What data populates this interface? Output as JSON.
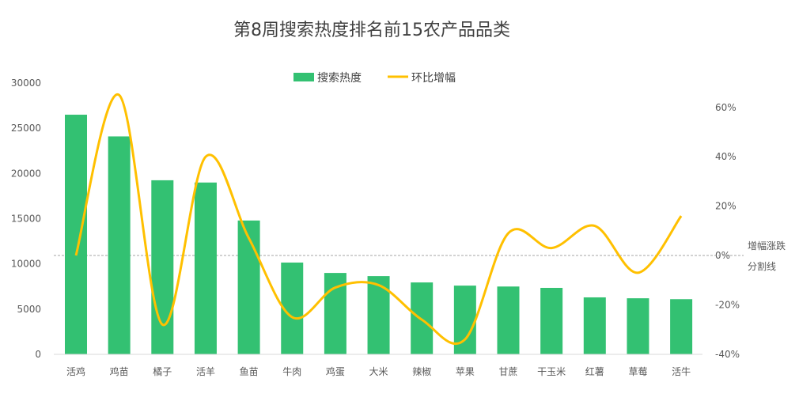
{
  "chart_data": {
    "type": "bar+line",
    "title": "第8周搜索热度排名前15农产品品类",
    "categories": [
      "活鸡",
      "鸡苗",
      "橘子",
      "活羊",
      "鱼苗",
      "牛肉",
      "鸡蛋",
      "大米",
      "辣椒",
      "苹果",
      "甘蔗",
      "干玉米",
      "红薯",
      "草莓",
      "活牛"
    ],
    "series": [
      {
        "name": "搜索热度",
        "type": "bar",
        "axis": "left",
        "color": "#33c172",
        "values": [
          26500,
          24100,
          19250,
          19000,
          14800,
          10150,
          9000,
          8650,
          7950,
          7600,
          7500,
          7350,
          6300,
          6200,
          6100
        ]
      },
      {
        "name": "环比增幅",
        "type": "line",
        "axis": "right",
        "color": "#ffc000",
        "values": [
          0,
          65,
          -28,
          40,
          7,
          -25,
          -13,
          -12,
          -26,
          -34,
          9,
          3,
          12,
          -7,
          16
        ]
      }
    ],
    "left_axis": {
      "ylim": [
        0,
        30000
      ],
      "ticks": [
        0,
        5000,
        10000,
        15000,
        20000,
        25000,
        30000
      ]
    },
    "right_axis": {
      "ylim": [
        -40,
        70
      ],
      "ticks": [
        "-40%",
        "-20%",
        "0%",
        "20%",
        "40%",
        "60%"
      ],
      "tick_values": [
        -40,
        -20,
        0,
        20,
        40,
        60
      ]
    },
    "annotation": [
      "增幅涨跌",
      "分割线"
    ],
    "legend": "top"
  }
}
